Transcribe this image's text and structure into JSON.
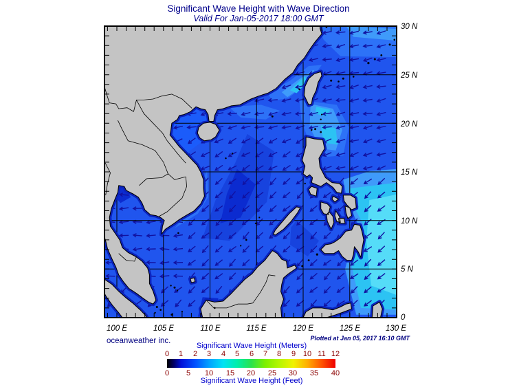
{
  "title": "Significant Wave Height with Wave Direction",
  "subtitle": "Valid For Jan-05-2017 18:00 GMT",
  "credit": "oceanweather inc.",
  "plotted_at": "Plotted at Jan 05, 2017 16:10 GMT",
  "axes": {
    "lon_labels": [
      "100 E",
      "105 E",
      "110 E",
      "115 E",
      "120 E",
      "125 E",
      "130 E"
    ],
    "lat_labels": [
      "30 N",
      "25 N",
      "20 N",
      "15 N",
      "10 N",
      "5 N",
      "0"
    ]
  },
  "legend": {
    "meters_title": "Significant Wave Height (Meters)",
    "feet_title": "Significant Wave Height (Feet)",
    "meters_ticks": [
      "0",
      "1",
      "2",
      "3",
      "4",
      "5",
      "6",
      "7",
      "8",
      "9",
      "10",
      "11",
      "12"
    ],
    "feet_ticks": [
      "0",
      "5",
      "10",
      "15",
      "20",
      "25",
      "30",
      "35",
      "40"
    ],
    "gradient": [
      {
        "m": 0,
        "color": "#000000"
      },
      {
        "m": 0.5,
        "color": "#00006a"
      },
      {
        "m": 1,
        "color": "#0012d8"
      },
      {
        "m": 2,
        "color": "#0050ff"
      },
      {
        "m": 3,
        "color": "#00a2ff"
      },
      {
        "m": 4,
        "color": "#00e2f4"
      },
      {
        "m": 5,
        "color": "#00eeaa"
      },
      {
        "m": 6,
        "color": "#2ae24e"
      },
      {
        "m": 7,
        "color": "#7df000"
      },
      {
        "m": 8,
        "color": "#b6f600"
      },
      {
        "m": 9,
        "color": "#f0f200"
      },
      {
        "m": 10,
        "color": "#ffae00"
      },
      {
        "m": 11,
        "color": "#ff5500"
      },
      {
        "m": 12,
        "color": "#ee0000"
      }
    ]
  },
  "colors": {
    "background": "#ffffff",
    "title_text": "#00008b",
    "axis_text": "#000000",
    "credit_text": "#000080",
    "legend_number_text": "#8b0000",
    "legend_title_text": "#0000cd",
    "land": "#c4c4c4",
    "coastline": "#000000",
    "coast_shallow": "#0a22bb",
    "ocean_base": "#2055ee",
    "ocean_light": "#2d72f7",
    "ocean_sky": "#3f9bfa",
    "ocean_cyan": "#2cc3f3",
    "ocean_cyan_bright": "#55dcf8",
    "ocean_dark": "#1743de",
    "ocean_darker": "#0b2bd0",
    "gulf_tonkin": "#1b5cfa",
    "arrow": "#1111a0",
    "grid": "#000000"
  }
}
